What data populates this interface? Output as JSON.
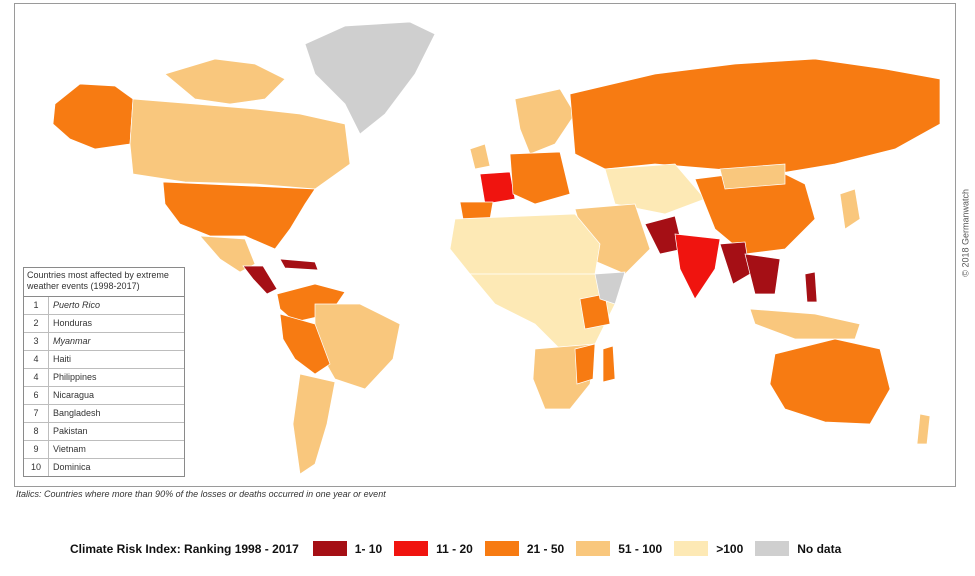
{
  "credit": "© 2018 Germanwatch",
  "table": {
    "title": "Countries most affected by extreme weather events (1998-2017)",
    "rows": [
      {
        "rank": "1",
        "country": "Puerto Rico",
        "italic": true
      },
      {
        "rank": "2",
        "country": "Honduras",
        "italic": false
      },
      {
        "rank": "3",
        "country": "Myanmar",
        "italic": true
      },
      {
        "rank": "4",
        "country": "Haiti",
        "italic": false
      },
      {
        "rank": "4",
        "country": "Philippines",
        "italic": false
      },
      {
        "rank": "6",
        "country": "Nicaragua",
        "italic": false
      },
      {
        "rank": "7",
        "country": "Bangladesh",
        "italic": false
      },
      {
        "rank": "8",
        "country": "Pakistan",
        "italic": false
      },
      {
        "rank": "9",
        "country": "Vietnam",
        "italic": false
      },
      {
        "rank": "10",
        "country": "Dominica",
        "italic": false
      }
    ]
  },
  "footnote": "Italics: Countries where more than 90% of the losses or deaths occurred in one year or event",
  "legend": {
    "title": "Climate Risk Index: Ranking 1998 - 2017",
    "items": [
      {
        "label": "1- 10",
        "color": "#a50f15"
      },
      {
        "label": "11 - 20",
        "color": "#f0140f"
      },
      {
        "label": "21 - 50",
        "color": "#f77b12"
      },
      {
        "label": "51 - 100",
        "color": "#f9c77d"
      },
      {
        "label": ">100",
        "color": "#fde9b5"
      },
      {
        "label": "No data",
        "color": "#cfcfcf"
      }
    ]
  }
}
